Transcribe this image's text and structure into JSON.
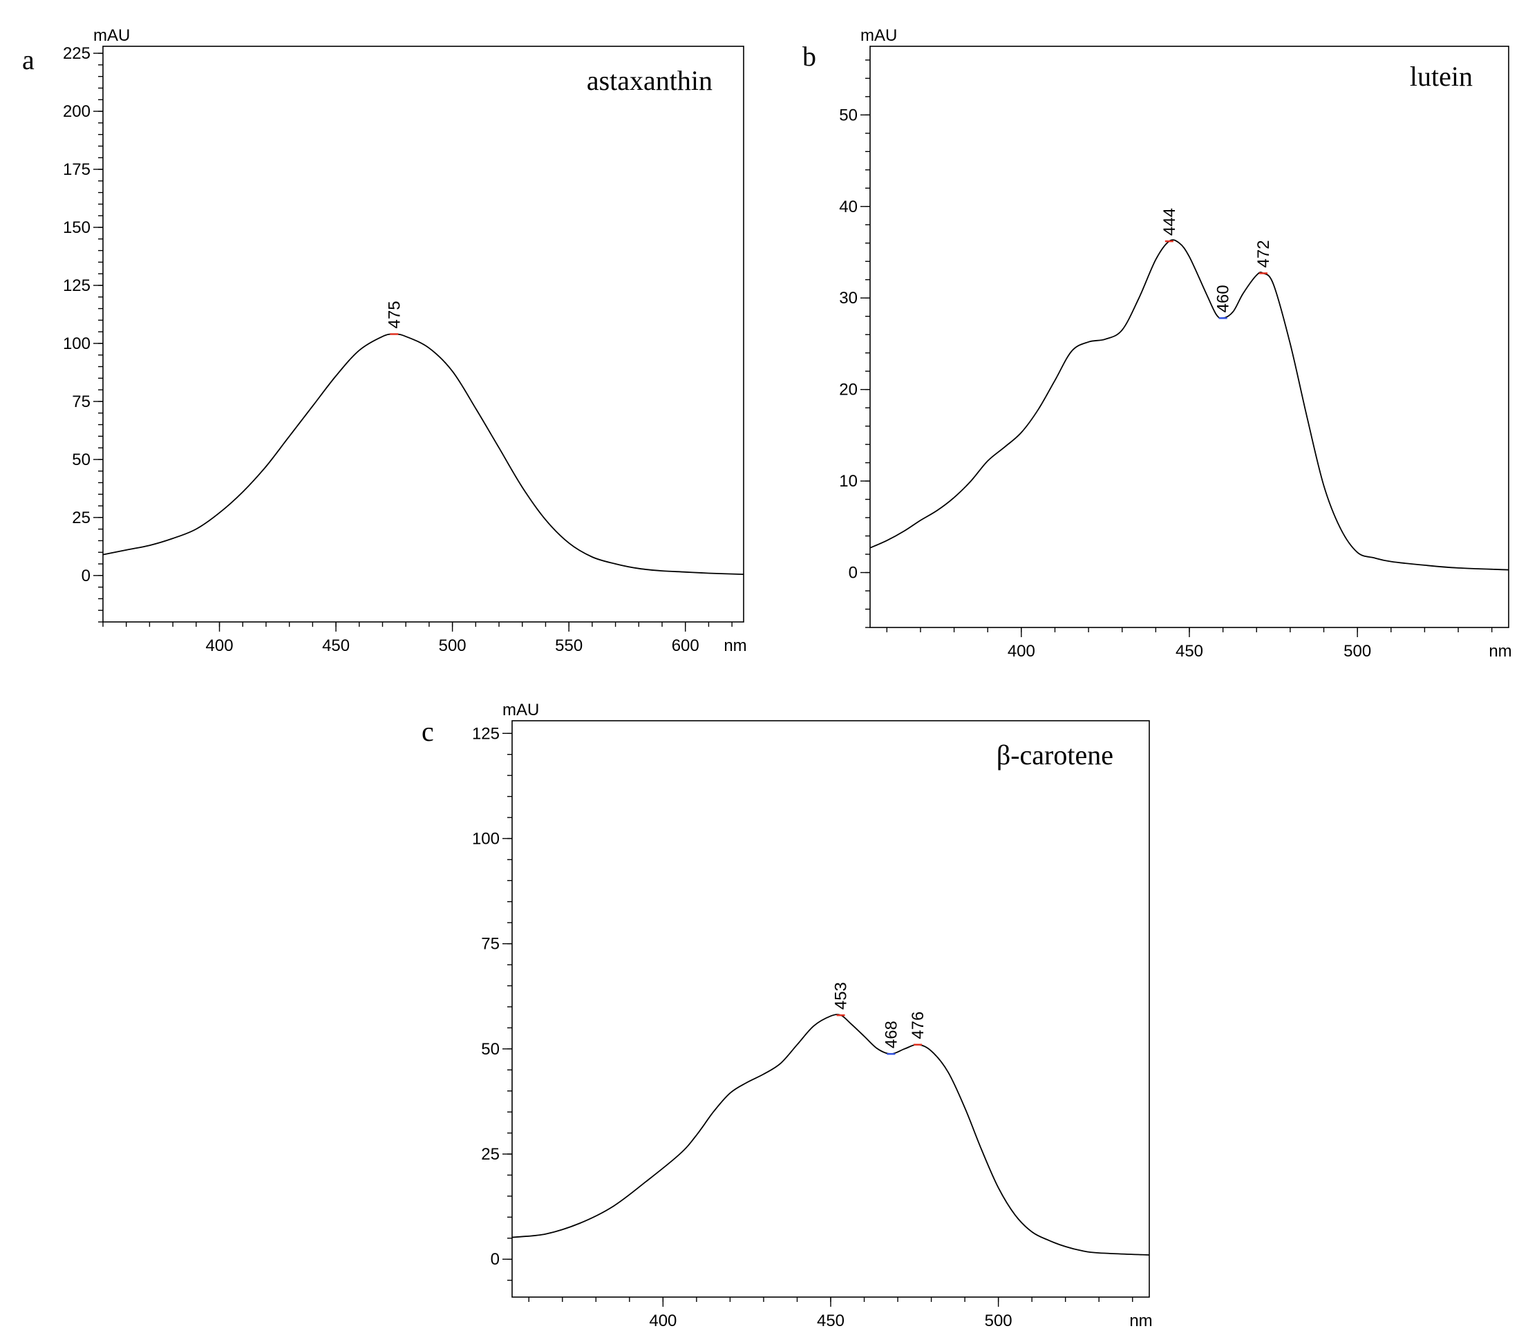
{
  "chart_data": [
    {
      "type": "line",
      "panel_letter": "a",
      "title": "astaxanthin",
      "ylabel": "mAU",
      "xlabel": "nm",
      "xlim": [
        350,
        625
      ],
      "ylim": [
        -20,
        228
      ],
      "x_ticks": [
        400,
        450,
        500,
        550,
        600
      ],
      "x_minor_step": 10,
      "y_ticks": [
        0,
        25,
        50,
        75,
        100,
        125,
        150,
        175,
        200,
        225
      ],
      "y_minor_step": 5,
      "peaks": [
        {
          "x": 475,
          "y": 104,
          "label": "475",
          "color": "#e03020"
        }
      ],
      "series": [
        {
          "name": "astaxanthin",
          "color": "#000000",
          "points": [
            [
              350,
              9
            ],
            [
              360,
              11
            ],
            [
              370,
              13
            ],
            [
              380,
              16
            ],
            [
              390,
              20
            ],
            [
              400,
              27
            ],
            [
              410,
              36
            ],
            [
              420,
              47
            ],
            [
              430,
              60
            ],
            [
              440,
              73
            ],
            [
              450,
              86
            ],
            [
              460,
              97
            ],
            [
              470,
              103
            ],
            [
              475,
              104
            ],
            [
              480,
              103
            ],
            [
              490,
              98
            ],
            [
              500,
              88
            ],
            [
              510,
              72
            ],
            [
              520,
              55
            ],
            [
              530,
              38
            ],
            [
              540,
              24
            ],
            [
              550,
              14
            ],
            [
              560,
              8
            ],
            [
              570,
              5
            ],
            [
              580,
              3
            ],
            [
              590,
              2
            ],
            [
              600,
              1.5
            ],
            [
              610,
              1
            ],
            [
              625,
              0.5
            ]
          ]
        }
      ]
    },
    {
      "type": "line",
      "panel_letter": "b",
      "title": "lutein",
      "ylabel": "mAU",
      "xlabel": "nm",
      "xlim": [
        355,
        545
      ],
      "ylim": [
        -6,
        57.5
      ],
      "x_ticks": [
        400,
        450,
        500
      ],
      "x_minor_step": 10,
      "y_ticks": [
        0,
        10,
        20,
        30,
        40,
        50
      ],
      "y_minor_step": 2,
      "peaks": [
        {
          "x": 444,
          "y": 36.2,
          "label": "444",
          "color": "#e03020"
        },
        {
          "x": 460,
          "y": 27.8,
          "label": "460",
          "color": "#3050e0"
        },
        {
          "x": 472,
          "y": 32.7,
          "label": "472",
          "color": "#e03020"
        }
      ],
      "series": [
        {
          "name": "lutein",
          "color": "#000000",
          "points": [
            [
              355,
              2.7
            ],
            [
              360,
              3.5
            ],
            [
              365,
              4.5
            ],
            [
              370,
              5.7
            ],
            [
              375,
              6.8
            ],
            [
              380,
              8.2
            ],
            [
              385,
              10
            ],
            [
              390,
              12.2
            ],
            [
              395,
              13.7
            ],
            [
              400,
              15.3
            ],
            [
              405,
              17.8
            ],
            [
              410,
              21
            ],
            [
              415,
              24.2
            ],
            [
              420,
              25.2
            ],
            [
              425,
              25.5
            ],
            [
              430,
              26.5
            ],
            [
              435,
              30
            ],
            [
              440,
              34.2
            ],
            [
              444,
              36.2
            ],
            [
              447,
              36
            ],
            [
              450,
              34.5
            ],
            [
              455,
              30.5
            ],
            [
              458,
              28.2
            ],
            [
              460,
              27.8
            ],
            [
              463,
              28.5
            ],
            [
              466,
              30.5
            ],
            [
              470,
              32.5
            ],
            [
              472,
              32.7
            ],
            [
              475,
              31.5
            ],
            [
              480,
              25
            ],
            [
              485,
              17
            ],
            [
              490,
              9.5
            ],
            [
              495,
              4.8
            ],
            [
              500,
              2.2
            ],
            [
              505,
              1.6
            ],
            [
              510,
              1.2
            ],
            [
              520,
              0.8
            ],
            [
              530,
              0.5
            ],
            [
              545,
              0.3
            ]
          ]
        }
      ]
    },
    {
      "type": "line",
      "panel_letter": "c",
      "title": "β-carotene",
      "ylabel": "mAU",
      "xlabel": "nm",
      "xlim": [
        355,
        545
      ],
      "ylim": [
        -9,
        128
      ],
      "x_ticks": [
        400,
        450,
        500
      ],
      "x_minor_step": 10,
      "y_ticks": [
        0,
        25,
        50,
        75,
        100,
        125
      ],
      "y_minor_step": 5,
      "peaks": [
        {
          "x": 453,
          "y": 58,
          "label": "453",
          "color": "#e03020"
        },
        {
          "x": 468,
          "y": 48.8,
          "label": "468",
          "color": "#3050e0"
        },
        {
          "x": 476,
          "y": 51,
          "label": "476",
          "color": "#e03020"
        }
      ],
      "series": [
        {
          "name": "β-carotene",
          "color": "#000000",
          "points": [
            [
              355,
              5.2
            ],
            [
              365,
              6
            ],
            [
              375,
              8.5
            ],
            [
              385,
              12.5
            ],
            [
              395,
              18.5
            ],
            [
              405,
              25
            ],
            [
              410,
              29.5
            ],
            [
              415,
              35
            ],
            [
              420,
              39.5
            ],
            [
              425,
              42
            ],
            [
              430,
              44
            ],
            [
              435,
              46.5
            ],
            [
              440,
              51
            ],
            [
              445,
              55.5
            ],
            [
              450,
              57.8
            ],
            [
              453,
              58
            ],
            [
              456,
              56
            ],
            [
              460,
              53
            ],
            [
              464,
              50
            ],
            [
              468,
              48.8
            ],
            [
              472,
              50
            ],
            [
              476,
              51
            ],
            [
              480,
              49.5
            ],
            [
              485,
              44.5
            ],
            [
              490,
              36
            ],
            [
              495,
              26
            ],
            [
              500,
              17
            ],
            [
              505,
              10.5
            ],
            [
              510,
              6.5
            ],
            [
              515,
              4.5
            ],
            [
              520,
              3
            ],
            [
              525,
              2
            ],
            [
              530,
              1.5
            ],
            [
              545,
              1
            ]
          ]
        }
      ]
    }
  ]
}
